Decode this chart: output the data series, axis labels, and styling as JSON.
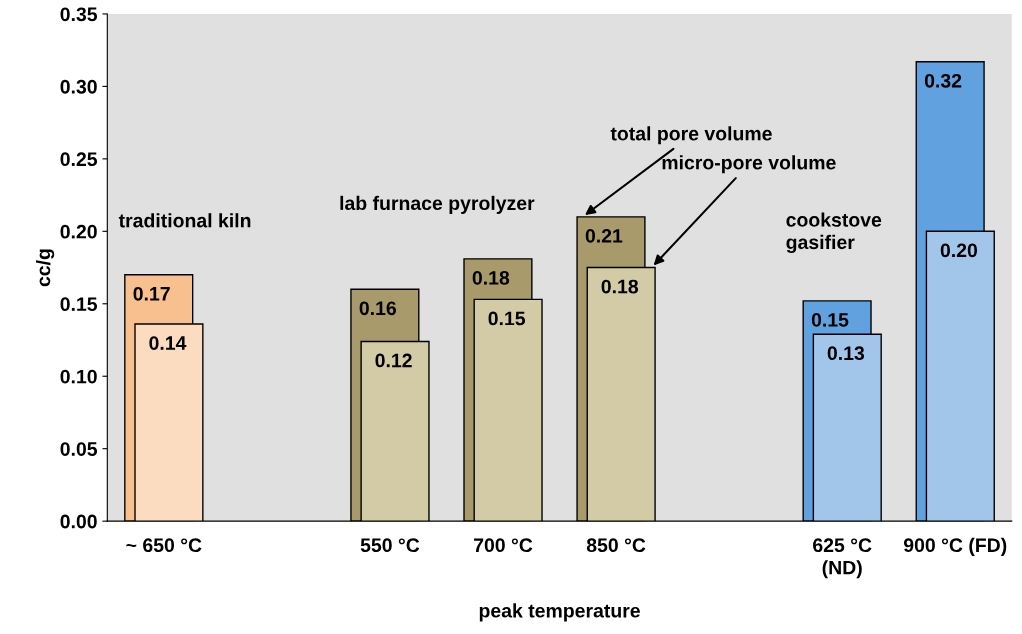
{
  "chart_data": {
    "type": "bar",
    "xlabel": "peak temperature",
    "ylabel": "cc/g",
    "categories": [
      "~ 650 °C",
      null,
      "550 °C",
      "700 °C",
      "850 °C",
      null,
      "625 °C\n(ND)",
      "900 °C (FD)"
    ],
    "series": [
      {
        "name": "total pore volume",
        "colors": [
          "#f9c08f",
          null,
          "#a89a6a",
          "#a89a6a",
          "#a89a6a",
          null,
          "#62a1e0",
          "#62a1e0"
        ],
        "values": [
          0.17,
          null,
          0.16,
          0.181,
          0.21,
          null,
          0.152,
          0.317
        ],
        "value_labels": [
          "0.17",
          null,
          "0.16",
          "0.18",
          "0.21",
          null,
          "0.15",
          "0.32"
        ]
      },
      {
        "name": "micro-pore volume",
        "colors": [
          "#fbdcc0",
          null,
          "#d3cba5",
          "#d3cba5",
          "#d3cba5",
          null,
          "#a2c5ea",
          "#a2c5ea"
        ],
        "values": [
          0.136,
          null,
          0.124,
          0.153,
          0.175,
          null,
          0.129,
          0.2
        ],
        "value_labels": [
          "0.14",
          null,
          "0.12",
          "0.15",
          "0.18",
          null,
          "0.13",
          "0.20"
        ]
      }
    ],
    "ylim": [
      0,
      0.35
    ],
    "yticks": [
      {
        "value": 0,
        "label": "0.00"
      },
      {
        "value": 0.05,
        "label": "0.05"
      },
      {
        "value": 0.1,
        "label": "0.10"
      },
      {
        "value": 0.15,
        "label": "0.15"
      },
      {
        "value": 0.2,
        "label": "0.20"
      },
      {
        "value": 0.25,
        "label": "0.25"
      },
      {
        "value": 0.3,
        "label": "0.30"
      },
      {
        "value": 0.35,
        "label": "0.35"
      }
    ],
    "grid": false,
    "legend": false,
    "annotations": [
      "traditional kiln",
      "lab furnace pyrolyzer",
      "cookstove\ngasifier"
    ]
  }
}
